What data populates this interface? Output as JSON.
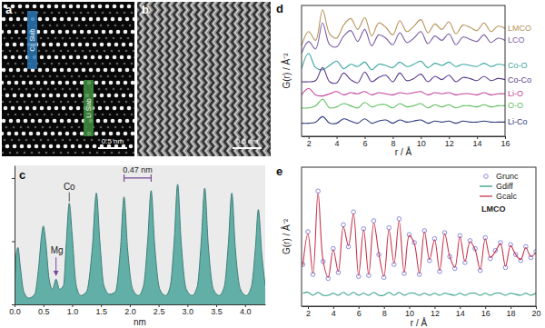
{
  "images": [
    {
      "label": "a",
      "slab_labels": [
        "Co Slab",
        "Li Slab"
      ],
      "scale_bar": "0.5 nm"
    },
    {
      "label": "b",
      "scale_bar": "0.5 nm"
    }
  ],
  "chart_data": [
    {
      "type": "area",
      "title": "c",
      "xlabel": "nm",
      "color": "#52a89f",
      "xlim": [
        0,
        4.35
      ],
      "ylim": [
        0,
        1.1
      ],
      "xticks": [
        {
          "value": 0,
          "label": "0.0"
        },
        0.5,
        {
          "value": 1,
          "label": "1.0"
        },
        1.5,
        {
          "value": 2,
          "label": "2.0"
        },
        2.5,
        {
          "value": 3,
          "label": "3.0"
        },
        3.5,
        {
          "value": 4,
          "label": "4.0"
        }
      ],
      "yticks": [
        0,
        0.5,
        1
      ],
      "tick_labels": "x",
      "x": [
        0,
        0.03,
        0.06,
        0.1,
        0.16,
        0.25,
        0.35,
        0.42,
        0.47,
        0.5,
        0.54,
        0.6,
        0.66,
        0.72,
        0.78,
        0.85,
        0.9,
        0.95,
        1.0,
        1.07,
        1.15,
        1.25,
        1.35,
        1.42,
        1.48,
        1.55,
        1.65,
        1.75,
        1.84,
        1.9,
        1.96,
        2.05,
        2.15,
        2.24,
        2.31,
        2.37,
        2.43,
        2.52,
        2.62,
        2.7,
        2.77,
        2.83,
        2.89,
        2.98,
        3.08,
        3.17,
        3.24,
        3.3,
        3.36,
        3.45,
        3.55,
        3.64,
        3.71,
        3.77,
        3.83,
        3.92,
        4.02,
        4.11,
        4.18,
        4.23,
        4.29,
        4.35
      ],
      "values": [
        0.1,
        0.4,
        0.45,
        0.3,
        0.1,
        0.05,
        0.08,
        0.3,
        0.55,
        0.62,
        0.5,
        0.2,
        0.12,
        0.2,
        0.12,
        0.15,
        0.5,
        0.8,
        0.55,
        0.15,
        0.07,
        0.1,
        0.45,
        0.88,
        0.5,
        0.15,
        0.08,
        0.1,
        0.45,
        0.85,
        0.45,
        0.12,
        0.07,
        0.15,
        0.5,
        0.9,
        0.48,
        0.12,
        0.07,
        0.14,
        0.5,
        0.95,
        0.5,
        0.12,
        0.07,
        0.14,
        0.5,
        0.92,
        0.48,
        0.12,
        0.07,
        0.14,
        0.48,
        0.88,
        0.45,
        0.12,
        0.07,
        0.14,
        0.45,
        0.75,
        0.4,
        0.15
      ],
      "annotations": [
        {
          "text": "Co",
          "x": 0.95,
          "y": 0.8
        },
        {
          "text": "Mg",
          "x": 0.72,
          "y": 0.2
        },
        {
          "text": "0.47 nm",
          "x": 1.9,
          "x2": 2.37,
          "y": 1.0
        }
      ]
    },
    {
      "type": "line",
      "title": "d",
      "xlabel": "r / Å",
      "ylabel": "G(r) / Å⁻²",
      "xlim": [
        1.5,
        16
      ],
      "ylim": [
        0,
        12
      ],
      "xticks": [
        2,
        4,
        6,
        8,
        10,
        12,
        14,
        16
      ],
      "tick_labels": "x",
      "x": [
        1.5,
        2,
        2.5,
        3,
        3.5,
        4,
        4.5,
        5,
        5.5,
        6,
        6.5,
        7,
        7.5,
        8,
        8.5,
        9,
        9.5,
        10,
        10.5,
        11,
        11.5,
        12,
        12.5,
        13,
        13.5,
        14,
        14.5,
        15,
        15.5,
        16
      ],
      "series": [
        {
          "name": "LMCO",
          "color": "#b8935a",
          "values": [
            8.3,
            9.6,
            8.8,
            11.6,
            9.4,
            9.0,
            10.2,
            10.8,
            9.8,
            10.9,
            9.2,
            10.4,
            10.0,
            9.3,
            10.6,
            9.6,
            10.1,
            10.7,
            9.5,
            10.3,
            9.8,
            10.5,
            9.4,
            10.2,
            10.0,
            9.7,
            10.4,
            9.6,
            10.1,
            9.9
          ]
        },
        {
          "name": "LCO",
          "color": "#7b5ea7",
          "values": [
            7.6,
            8.7,
            8.0,
            10.4,
            8.4,
            8.2,
            9.2,
            9.7,
            8.7,
            9.8,
            8.3,
            9.3,
            9.0,
            8.4,
            9.5,
            8.6,
            9.0,
            9.6,
            8.5,
            9.2,
            8.8,
            9.4,
            8.4,
            9.1,
            8.9,
            8.7,
            9.3,
            8.6,
            9.0,
            8.8
          ]
        },
        {
          "name": "Co-O",
          "color": "#3aa6a0",
          "values": [
            6.2,
            7.6,
            6.3,
            6.1,
            6.5,
            6.9,
            6.2,
            6.6,
            6.4,
            6.8,
            6.1,
            6.6,
            6.5,
            6.3,
            6.8,
            6.4,
            6.6,
            6.9,
            6.3,
            6.7,
            6.5,
            6.8,
            6.4,
            6.6,
            6.5,
            6.4,
            6.7,
            6.4,
            6.6,
            6.5
          ]
        },
        {
          "name": "Co-Co",
          "color": "#5b3a8c",
          "values": [
            5.0,
            5.0,
            5.1,
            6.3,
            5.0,
            4.9,
            5.8,
            5.2,
            4.9,
            5.9,
            5.0,
            5.4,
            5.6,
            5.0,
            5.8,
            5.1,
            5.3,
            5.7,
            5.0,
            5.5,
            5.2,
            5.6,
            5.0,
            5.4,
            5.3,
            5.1,
            5.5,
            5.1,
            5.3,
            5.2
          ]
        },
        {
          "name": "Li-O",
          "color": "#c2449c",
          "values": [
            3.8,
            4.4,
            3.8,
            3.7,
            3.9,
            4.1,
            3.8,
            4.0,
            3.9,
            4.1,
            3.8,
            4.0,
            3.9,
            3.8,
            4.0,
            3.9,
            4.0,
            4.1,
            3.8,
            4.0,
            3.9,
            4.0,
            3.8,
            3.9,
            3.9,
            3.8,
            4.0,
            3.8,
            3.9,
            3.9
          ]
        },
        {
          "name": "O-O",
          "color": "#5cbf5c",
          "values": [
            2.6,
            2.6,
            2.8,
            3.4,
            2.6,
            2.7,
            3.0,
            2.8,
            2.6,
            3.1,
            2.7,
            2.9,
            2.9,
            2.6,
            3.0,
            2.7,
            2.8,
            3.0,
            2.6,
            2.9,
            2.7,
            2.9,
            2.6,
            2.8,
            2.8,
            2.7,
            2.9,
            2.7,
            2.8,
            2.8
          ]
        },
        {
          "name": "Li-Co",
          "color": "#2e3a7a",
          "values": [
            1.2,
            1.2,
            1.3,
            1.8,
            1.2,
            1.2,
            1.6,
            1.4,
            1.2,
            1.6,
            1.2,
            1.4,
            1.5,
            1.2,
            1.5,
            1.3,
            1.4,
            1.5,
            1.2,
            1.4,
            1.3,
            1.4,
            1.2,
            1.4,
            1.3,
            1.3,
            1.4,
            1.3,
            1.3,
            1.3
          ]
        }
      ]
    },
    {
      "type": "line",
      "title": "e",
      "xlabel": "r / Å",
      "ylabel": "G(r) / Å⁻²",
      "xlim": [
        1.5,
        20
      ],
      "ylim": [
        -4,
        10
      ],
      "xticks": [
        2,
        4,
        6,
        8,
        10,
        12,
        14,
        16,
        18,
        20
      ],
      "tick_labels": "x",
      "legend": "upper right",
      "annotations": [
        {
          "text": "LMCO"
        }
      ],
      "x": [
        1.6,
        2.0,
        2.4,
        2.8,
        3.2,
        3.6,
        4.0,
        4.4,
        4.8,
        5.2,
        5.6,
        6.0,
        6.4,
        6.8,
        7.2,
        7.6,
        8.0,
        8.4,
        8.8,
        9.2,
        9.6,
        10.0,
        10.4,
        10.8,
        11.2,
        11.6,
        12.0,
        12.4,
        12.8,
        13.2,
        13.6,
        14.0,
        14.4,
        14.8,
        15.2,
        15.6,
        16.0,
        16.4,
        16.8,
        17.2,
        17.6,
        18.0,
        18.4,
        18.8,
        19.2,
        19.6,
        20.0
      ],
      "series": [
        {
          "name": "Grunc",
          "type": "scatter",
          "marker": "circle",
          "color": "#7d7fd8",
          "values": [
            0.2,
            3.5,
            -0.8,
            7.6,
            0.5,
            -1.2,
            1.8,
            -0.6,
            4.2,
            2.0,
            5.5,
            -1.0,
            3.8,
            -0.9,
            4.6,
            1.2,
            -1.1,
            3.9,
            0.2,
            4.8,
            -0.7,
            3.2,
            2.4,
            -0.8,
            3.6,
            0.6,
            2.8,
            -0.5,
            3.4,
            1.0,
            -0.2,
            3.1,
            0.4,
            2.6,
            1.8,
            -0.4,
            2.9,
            0.8,
            1.6,
            2.4,
            -0.1,
            2.2,
            1.2,
            0.6,
            2.0,
            0.9,
            1.5
          ]
        },
        {
          "name": "Gdiff",
          "type": "line",
          "color": "#2f9e80",
          "values": [
            -2.7,
            -2.6,
            -2.9,
            -2.6,
            -2.9,
            -2.9,
            -2.7,
            -2.9,
            -2.6,
            -2.9,
            -2.6,
            -2.9,
            -2.7,
            -2.9,
            -2.6,
            -2.9,
            -2.9,
            -2.6,
            -2.9,
            -2.6,
            -2.9,
            -2.7,
            -2.7,
            -2.9,
            -2.7,
            -2.9,
            -2.7,
            -2.9,
            -2.7,
            -2.8,
            -2.9,
            -2.7,
            -2.9,
            -2.7,
            -2.7,
            -2.9,
            -2.7,
            -2.9,
            -2.7,
            -2.7,
            -2.9,
            -2.7,
            -2.8,
            -2.9,
            -2.7,
            -2.9,
            -2.7
          ]
        },
        {
          "name": "Gcalc",
          "type": "line",
          "color": "#c8344c",
          "values": [
            0.1,
            3.3,
            -0.7,
            7.4,
            0.6,
            -1.1,
            1.7,
            -0.5,
            4.0,
            2.1,
            5.3,
            -0.9,
            3.7,
            -0.8,
            4.4,
            1.3,
            -1.0,
            3.7,
            0.3,
            4.6,
            -0.6,
            3.1,
            2.3,
            -0.7,
            3.5,
            0.7,
            2.7,
            -0.4,
            3.3,
            1.0,
            -0.1,
            3.0,
            0.5,
            2.5,
            1.7,
            -0.3,
            2.8,
            0.9,
            1.5,
            2.3,
            0.0,
            2.1,
            1.2,
            0.7,
            1.9,
            1.0,
            1.4
          ]
        }
      ]
    }
  ]
}
